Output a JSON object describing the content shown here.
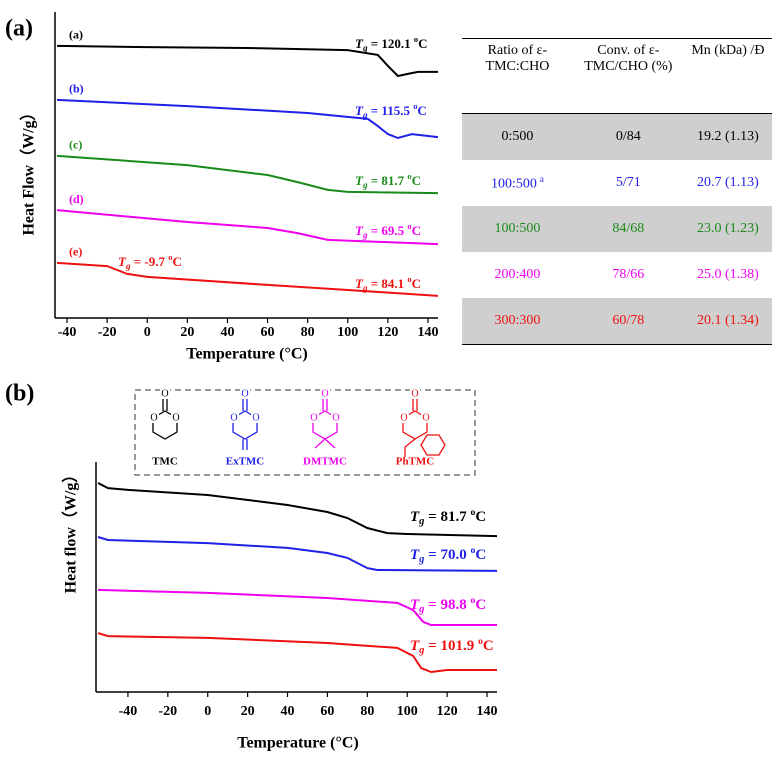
{
  "chart_data": [
    {
      "type": "line",
      "panel_label": "(a)",
      "x_label": "Temperature (°C)",
      "y_label": "Heat Flow（W/g）",
      "xlim": [
        -45,
        145
      ],
      "xticks": [
        -40,
        -20,
        0,
        20,
        40,
        60,
        80,
        100,
        120,
        140
      ],
      "ylim": [
        0,
        100
      ],
      "series": [
        {
          "name": "(a)",
          "color": "#000000",
          "x": [
            -45,
            0,
            50,
            100,
            115,
            120,
            125,
            130,
            135,
            145
          ],
          "values": [
            91.3,
            90.9,
            90.6,
            89.9,
            88.3,
            84.6,
            81.2,
            81.9,
            82.6,
            82.6
          ]
        },
        {
          "name": "(b)",
          "color": "#2020e8",
          "x": [
            -45,
            20,
            80,
            110,
            115,
            120,
            125,
            132,
            145
          ],
          "values": [
            73.2,
            71.1,
            68.8,
            66.8,
            64.4,
            61.7,
            60.4,
            61.7,
            60.7
          ]
        },
        {
          "name": "(c)",
          "color": "#1a8a1a",
          "x": [
            -45,
            20,
            60,
            75,
            90,
            100,
            145
          ],
          "values": [
            54.4,
            51.3,
            48.0,
            45.6,
            43.0,
            42.3,
            41.9
          ]
        },
        {
          "name": "(d)",
          "color": "#ee00ee",
          "x": [
            -45,
            20,
            60,
            75,
            90,
            145
          ],
          "values": [
            36.2,
            32.2,
            30.2,
            28.5,
            26.2,
            24.8
          ]
        },
        {
          "name": "(e)",
          "color": "#ee1111",
          "x": [
            -45,
            -20,
            -15,
            -10,
            0,
            60,
            100,
            145
          ],
          "values": [
            18.5,
            17.4,
            16.1,
            14.8,
            13.8,
            11.1,
            9.4,
            7.4
          ]
        }
      ],
      "annotations": [
        {
          "t": "T",
          "g": "g",
          "eq": " = 120.1 ",
          "o": "o",
          "c": "C",
          "color": "#000000"
        },
        {
          "t": "T",
          "g": "g",
          "eq": " = 115.5 ",
          "o": "o",
          "c": "C",
          "color": "#2020e8"
        },
        {
          "t": "T",
          "g": "g",
          "eq": " = 81.7 ",
          "o": "o",
          "c": "C",
          "color": "#1a8a1a"
        },
        {
          "t": "T",
          "g": "g",
          "eq": " = 69.5 ",
          "o": "o",
          "c": "C",
          "color": "#ee00ee"
        },
        {
          "t": "T",
          "g": "g",
          "eq": " = 84.1 ",
          "o": "o",
          "c": "C",
          "color": "#ee1111"
        },
        {
          "t": "T",
          "g": "g",
          "eq": " = -9.7 ",
          "o": "o",
          "c": "C",
          "color": "#ee1111"
        }
      ]
    },
    {
      "type": "line",
      "panel_label": "(b)",
      "x_label": "Temperature (°C)",
      "y_label": "Heat flow（W/g）",
      "xlim": [
        -55,
        145
      ],
      "xticks": [
        -40,
        -20,
        0,
        20,
        40,
        60,
        80,
        100,
        120,
        140
      ],
      "ylim": [
        0,
        100
      ],
      "series": [
        {
          "color": "#000000",
          "x": [
            -55,
            -50,
            -40,
            0,
            40,
            60,
            70,
            80,
            90,
            100,
            145
          ],
          "values": [
            90.1,
            87.9,
            87.1,
            84.9,
            80.6,
            77.6,
            75.0,
            70.7,
            68.5,
            68.1,
            67.2
          ]
        },
        {
          "color": "#2020e8",
          "x": [
            -55,
            -50,
            0,
            40,
            60,
            70,
            80,
            85,
            145
          ],
          "values": [
            66.8,
            65.5,
            64.2,
            62.1,
            59.9,
            57.8,
            53.4,
            52.6,
            52.2
          ]
        },
        {
          "color": "#ee00ee",
          "x": [
            -55,
            0,
            60,
            95,
            103,
            108,
            112,
            145
          ],
          "values": [
            44.0,
            42.7,
            40.5,
            38.4,
            35.3,
            30.2,
            28.9,
            28.9
          ]
        },
        {
          "color": "#ee1111",
          "x": [
            -55,
            -50,
            0,
            60,
            95,
            103,
            107,
            112,
            120,
            145
          ],
          "values": [
            25.4,
            24.1,
            23.3,
            21.1,
            19.0,
            15.5,
            10.3,
            8.6,
            9.5,
            9.5
          ]
        }
      ],
      "annotations": [
        {
          "t": "T",
          "g": "g",
          "eq": " = 81.7 ",
          "o": "o",
          "c": "C",
          "color": "#000000"
        },
        {
          "t": "T",
          "g": "g",
          "eq": " = 70.0 ",
          "o": "o",
          "c": "C",
          "color": "#2020e8"
        },
        {
          "t": "T",
          "g": "g",
          "eq": " = 98.8 ",
          "o": "o",
          "c": "C",
          "color": "#ee00ee"
        },
        {
          "t": "T",
          "g": "g",
          "eq": " = 101.9 ",
          "o": "o",
          "c": "C",
          "color": "#ee1111"
        }
      ],
      "inset_labels": [
        {
          "text": "TMC",
          "color": "#000000"
        },
        {
          "text": "ExTMC",
          "color": "#2020e8"
        },
        {
          "text": "DMTMC",
          "color": "#ee00ee"
        },
        {
          "text": "PhTMC",
          "color": "#ee1111"
        }
      ]
    }
  ],
  "table": {
    "header": [
      "Ratio of ε-TMC:CHO",
      "Conv. of ε-TMC/CHO (%)",
      "Mn (kDa) /Đ"
    ],
    "rows": [
      {
        "cells": [
          "0:500",
          "0/84",
          "19.2 (1.13)"
        ],
        "color": "#000000",
        "shaded": true
      },
      {
        "cells": [
          "100:500",
          "5/71",
          "20.7 (1.13)"
        ],
        "note": "a",
        "color": "#2020e8",
        "shaded": false
      },
      {
        "cells": [
          "100:500",
          "84/68",
          "23.0 (1.23)"
        ],
        "color": "#1a8a1a",
        "shaded": true
      },
      {
        "cells": [
          "200:400",
          "78/66",
          "25.0 (1.38)"
        ],
        "color": "#ee00ee",
        "shaded": false
      },
      {
        "cells": [
          "300:300",
          "60/78",
          "20.1 (1.34)"
        ],
        "color": "#ee1111",
        "shaded": true
      }
    ]
  }
}
